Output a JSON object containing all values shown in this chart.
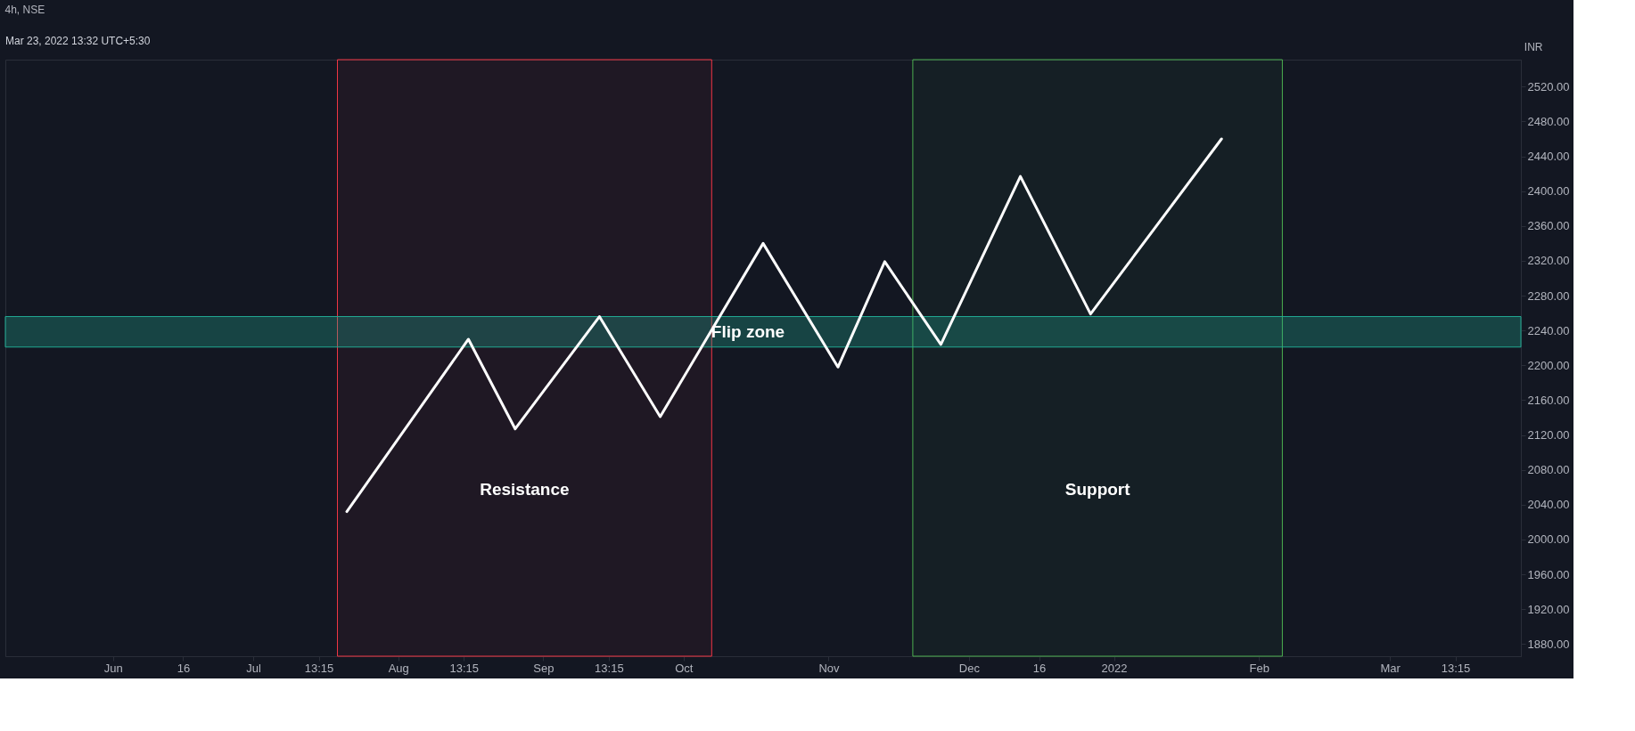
{
  "chart_data": {
    "type": "line",
    "title": "4h, NSE",
    "ylabel": "INR",
    "annotations": [
      "Mar 23, 2022 13:32 UTC+5:30"
    ],
    "x": [
      "2021-07-21",
      "2021-08-16",
      "2021-08-26",
      "2021-09-13",
      "2021-09-26",
      "2021-10-18",
      "2021-11-03",
      "2021-11-13",
      "2021-11-25",
      "2021-12-12",
      "2021-12-27",
      "2022-01-24"
    ],
    "series": [
      {
        "color": "#ffffff",
        "values": [
          2032,
          2230,
          2127,
          2256,
          2141,
          2340,
          2198,
          2319,
          2224,
          2417,
          2259,
          2460
        ]
      }
    ],
    "marker": "none",
    "line_style": "solid",
    "grid": false,
    "xlim": [
      "2021-05-09",
      "2022-03-29"
    ],
    "xticks": [
      {
        "value": "2021-06-01",
        "label": "Jun"
      },
      {
        "value": "2021-06-16",
        "label": "16"
      },
      {
        "value": "2021-07-01",
        "label": "Jul"
      },
      {
        "value": "2021-07-15",
        "label": "13:15"
      },
      {
        "value": "2021-08-01",
        "label": "Aug"
      },
      {
        "value": "2021-08-15",
        "label": "13:15"
      },
      {
        "value": "2021-09-01",
        "label": "Sep"
      },
      {
        "value": "2021-09-15",
        "label": "13:15"
      },
      {
        "value": "2021-10-01",
        "label": "Oct"
      },
      {
        "value": "2021-11-01",
        "label": "Nov"
      },
      {
        "value": "2021-12-01",
        "label": "Dec"
      },
      {
        "value": "2021-12-16",
        "label": "16"
      },
      {
        "value": "2022-01-01",
        "label": "2022"
      },
      {
        "value": "2022-02-01",
        "label": "Feb"
      },
      {
        "value": "2022-03-01",
        "label": "Mar"
      },
      {
        "value": "2022-03-15",
        "label": "13:15"
      }
    ],
    "ylim": [
      1866,
      2551
    ],
    "yticks": [
      {
        "value": 1880,
        "label": "1880.00"
      },
      {
        "value": 1920,
        "label": "1920.00"
      },
      {
        "value": 1960,
        "label": "1960.00"
      },
      {
        "value": 2000,
        "label": "2000.00"
      },
      {
        "value": 2040,
        "label": "2040.00"
      },
      {
        "value": 2080,
        "label": "2080.00"
      },
      {
        "value": 2120,
        "label": "2120.00"
      },
      {
        "value": 2160,
        "label": "2160.00"
      },
      {
        "value": 2200,
        "label": "2200.00"
      },
      {
        "value": 2240,
        "label": "2240.00"
      },
      {
        "value": 2280,
        "label": "2280.00"
      },
      {
        "value": 2320,
        "label": "2320.00"
      },
      {
        "value": 2360,
        "label": "2360.00"
      },
      {
        "value": 2400,
        "label": "2400.00"
      },
      {
        "value": 2440,
        "label": "2440.00"
      },
      {
        "value": 2480,
        "label": "2480.00"
      },
      {
        "value": 2520,
        "label": "2520.00"
      }
    ],
    "bands": [
      {
        "axis": "x",
        "from": "2021-07-19",
        "to": "2021-10-07",
        "label": "Resistance",
        "color": "#f23645"
      },
      {
        "axis": "x",
        "from": "2021-11-19",
        "to": "2022-02-06",
        "label": "Support",
        "color": "#4caf50"
      },
      {
        "axis": "y",
        "from": 2221,
        "to": 2256,
        "label": "Flip zone",
        "color": "#22ab94"
      }
    ]
  }
}
